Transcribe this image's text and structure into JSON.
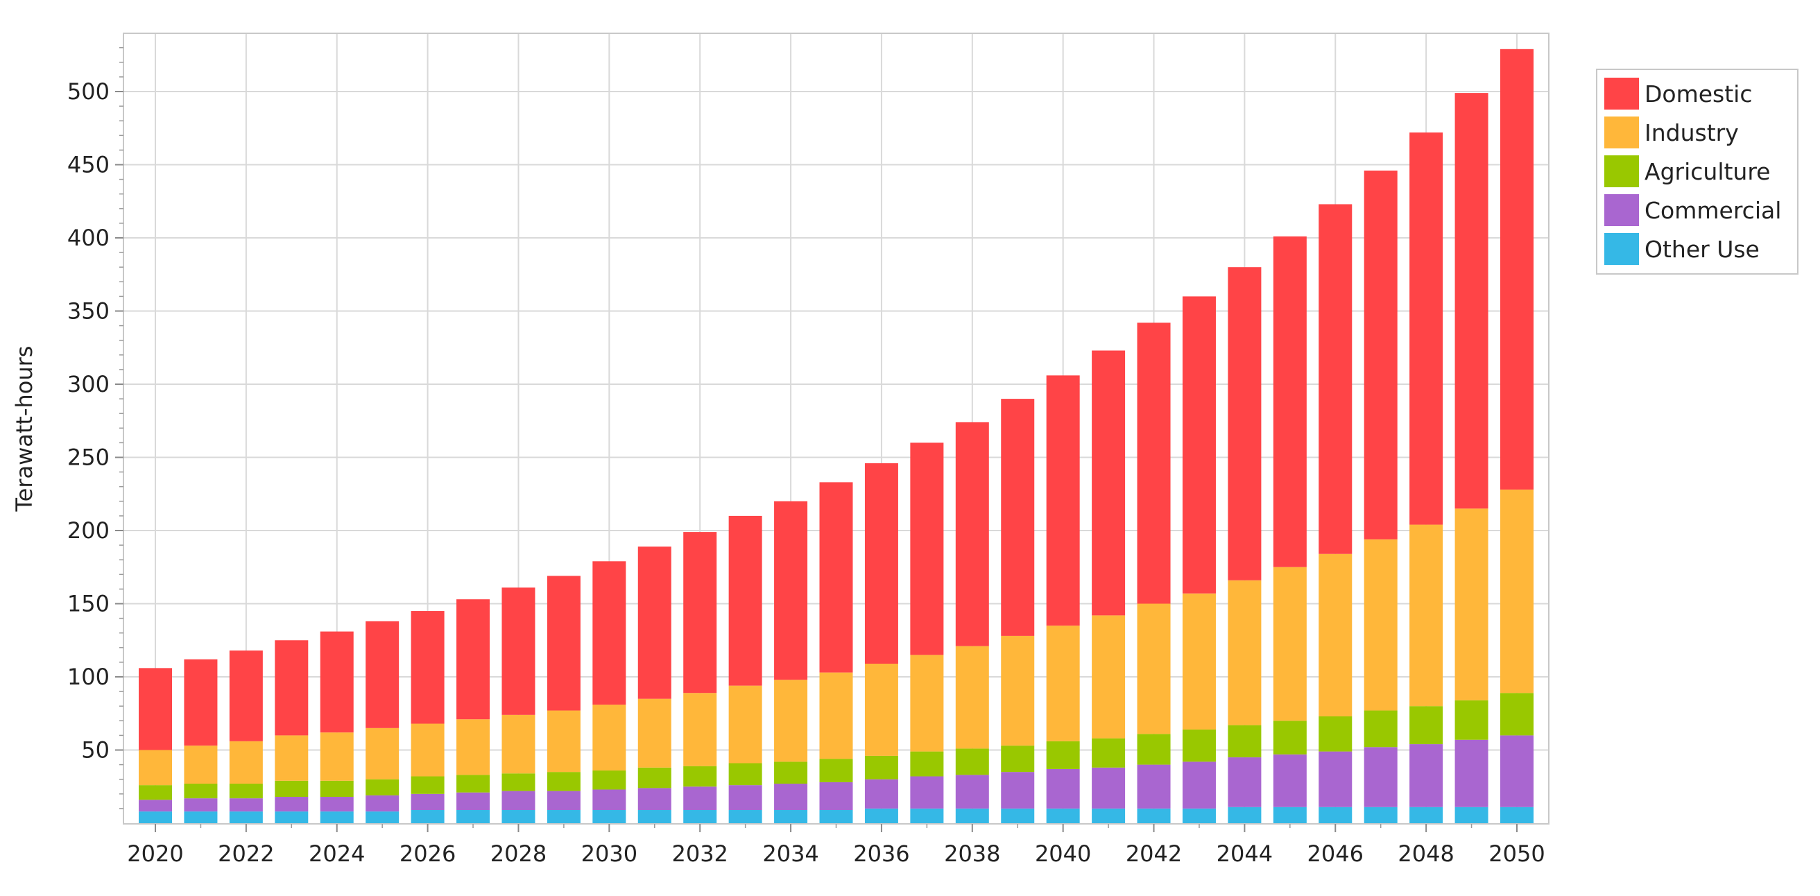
{
  "chart_data": {
    "type": "bar",
    "stacked": true,
    "title": "",
    "xlabel": "",
    "ylabel": "Terawatt-hours",
    "ylim": [
      0,
      540
    ],
    "yticks": [
      50,
      100,
      150,
      200,
      250,
      300,
      350,
      400,
      450,
      500
    ],
    "grid": true,
    "legend_position": "top-right-outside",
    "categories": [
      "2020",
      "2021",
      "2022",
      "2023",
      "2024",
      "2025",
      "2026",
      "2027",
      "2028",
      "2029",
      "2030",
      "2031",
      "2032",
      "2033",
      "2034",
      "2035",
      "2036",
      "2037",
      "2038",
      "2039",
      "2040",
      "2041",
      "2042",
      "2043",
      "2044",
      "2045",
      "2046",
      "2047",
      "2048",
      "2049",
      "2050"
    ],
    "xtick_labels": [
      "2020",
      "2022",
      "2024",
      "2026",
      "2028",
      "2030",
      "2032",
      "2034",
      "2036",
      "2038",
      "2040",
      "2042",
      "2044",
      "2046",
      "2048",
      "2050"
    ],
    "series": [
      {
        "name": "Other Use",
        "color": "#35b8e6",
        "values": [
          8,
          8,
          8,
          8,
          8,
          8,
          9,
          9,
          9,
          9,
          9,
          9,
          9,
          9,
          9,
          9,
          10,
          10,
          10,
          10,
          10,
          10,
          10,
          10,
          11,
          11,
          11,
          11,
          11,
          11,
          11
        ]
      },
      {
        "name": "Commercial",
        "color": "#a966d0",
        "values": [
          8,
          9,
          9,
          10,
          10,
          11,
          11,
          12,
          13,
          13,
          14,
          15,
          16,
          17,
          18,
          19,
          20,
          22,
          23,
          25,
          27,
          28,
          30,
          32,
          34,
          36,
          38,
          41,
          43,
          46,
          49
        ]
      },
      {
        "name": "Agriculture",
        "color": "#99c800",
        "values": [
          10,
          10,
          10,
          11,
          11,
          11,
          12,
          12,
          12,
          13,
          13,
          14,
          14,
          15,
          15,
          16,
          16,
          17,
          18,
          18,
          19,
          20,
          21,
          22,
          22,
          23,
          24,
          25,
          26,
          27,
          29
        ]
      },
      {
        "name": "Industry",
        "color": "#ffb73a",
        "values": [
          24,
          26,
          29,
          31,
          33,
          35,
          36,
          38,
          40,
          42,
          45,
          47,
          50,
          53,
          56,
          59,
          63,
          66,
          70,
          75,
          79,
          84,
          89,
          93,
          99,
          105,
          111,
          117,
          124,
          131,
          139
        ]
      },
      {
        "name": "Domestic",
        "color": "#ff4447",
        "values": [
          56,
          59,
          62,
          65,
          69,
          73,
          77,
          82,
          87,
          92,
          98,
          104,
          110,
          116,
          122,
          130,
          137,
          145,
          153,
          162,
          171,
          181,
          192,
          203,
          214,
          226,
          239,
          252,
          268,
          284,
          301
        ]
      }
    ],
    "legend_order": [
      "Domestic",
      "Industry",
      "Agriculture",
      "Commercial",
      "Other Use"
    ]
  }
}
